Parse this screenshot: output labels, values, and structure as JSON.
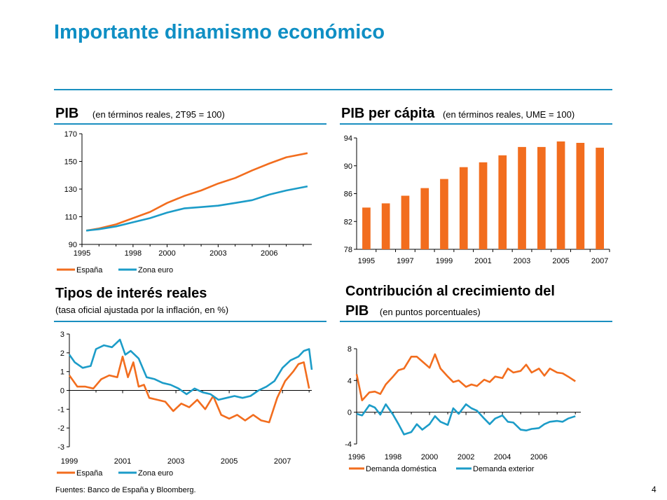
{
  "page": {
    "title": "Importante dinamismo económico",
    "footer": "Fuentes: Banco de España y Bloomberg.",
    "page_number": "4"
  },
  "panels": {
    "pib": {
      "title": "PIB",
      "subtitle": "(en términos reales, 2T95 = 100)"
    },
    "pib_pc": {
      "title": "PIB per cápita",
      "subtitle": "(en términos reales, UME = 100)"
    },
    "tipos": {
      "title": "Tipos de interés reales",
      "subtitle": "(tasa oficial ajustada por la inflación, en %)"
    },
    "contrib": {
      "title_line1": "Contribución al crecimiento del",
      "title_line2": "PIB",
      "subtitle": "(en puntos porcentuales)"
    }
  },
  "colors": {
    "accent": "#0f8fc4",
    "orange": "#f26d1e",
    "blue": "#1c9cc8"
  },
  "chart_data": [
    {
      "id": "pib",
      "type": "line",
      "title": "PIB",
      "subtitle": "(en términos reales, 2T95 = 100)",
      "ylim": [
        90,
        170
      ],
      "yticks": [
        90,
        110,
        130,
        150,
        170
      ],
      "xlim": [
        1995,
        2008.5
      ],
      "xticks": [
        1995,
        1998,
        2000,
        2003,
        2006
      ],
      "legend": "bottom",
      "series": [
        {
          "name": "España",
          "color": "#f26d1e",
          "x": [
            1995.25,
            1996,
            1997,
            1998,
            1999,
            2000,
            2001,
            2002,
            2003,
            2004,
            2005,
            2006,
            2007,
            2008.25
          ],
          "values": [
            100,
            101.5,
            104.5,
            109,
            113.5,
            120,
            125,
            129,
            134,
            138,
            143.5,
            148.5,
            153,
            156
          ]
        },
        {
          "name": "Zona euro",
          "color": "#1c9cc8",
          "x": [
            1995.25,
            1996,
            1997,
            1998,
            1999,
            2000,
            2001,
            2002,
            2003,
            2004,
            2005,
            2006,
            2007,
            2008.25
          ],
          "values": [
            100,
            101,
            103,
            106,
            109,
            113,
            116,
            117,
            118,
            120,
            122,
            126,
            129,
            132
          ]
        }
      ]
    },
    {
      "id": "pib_pc",
      "type": "bar",
      "title": "PIB per cápita",
      "subtitle": "(en términos reales, UME = 100)",
      "ylim": [
        78,
        94
      ],
      "yticks": [
        78,
        82,
        86,
        90,
        94
      ],
      "categories": [
        "1995",
        "1996",
        "1997",
        "1998",
        "1999",
        "2000",
        "2001",
        "2002",
        "2003",
        "2004",
        "2005",
        "2006",
        "2007"
      ],
      "xtick_labels": [
        "1995",
        "1997",
        "1999",
        "2001",
        "2003",
        "2005",
        "2007"
      ],
      "values": [
        84.0,
        84.6,
        85.7,
        86.8,
        88.1,
        89.8,
        90.5,
        91.5,
        92.7,
        92.7,
        93.5,
        93.3,
        92.6
      ],
      "color": "#f26d1e"
    },
    {
      "id": "tipos",
      "type": "line",
      "title": "Tipos de interés reales",
      "subtitle": "(tasa oficial ajustada por la inflación, en %)",
      "ylim": [
        -3,
        3
      ],
      "yticks": [
        -3,
        -2,
        -1,
        0,
        1,
        2,
        3
      ],
      "xlim": [
        1999,
        2008.1
      ],
      "xticks": [
        1999,
        2001,
        2003,
        2005,
        2007
      ],
      "legend": "bottom",
      "series": [
        {
          "name": "España",
          "color": "#f26d1e",
          "x": [
            1999.0,
            1999.3,
            1999.6,
            1999.9,
            2000.2,
            2000.5,
            2000.8,
            2001.0,
            2001.2,
            2001.4,
            2001.6,
            2001.8,
            2002.0,
            2002.3,
            2002.6,
            2002.9,
            2003.2,
            2003.5,
            2003.8,
            2004.1,
            2004.4,
            2004.7,
            2005.0,
            2005.3,
            2005.6,
            2005.9,
            2006.2,
            2006.5,
            2006.8,
            2007.1,
            2007.4,
            2007.6,
            2007.8,
            2008.0
          ],
          "values": [
            0.8,
            0.2,
            0.2,
            0.1,
            0.6,
            0.8,
            0.7,
            1.8,
            0.7,
            1.5,
            0.2,
            0.3,
            -0.4,
            -0.5,
            -0.6,
            -1.1,
            -0.7,
            -0.9,
            -0.5,
            -1.0,
            -0.3,
            -1.3,
            -1.5,
            -1.3,
            -1.6,
            -1.3,
            -1.6,
            -1.7,
            -0.4,
            0.5,
            1.0,
            1.4,
            1.5,
            0.1
          ]
        },
        {
          "name": "Zona euro",
          "color": "#1c9cc8",
          "x": [
            1999.0,
            1999.2,
            1999.5,
            1999.8,
            2000.0,
            2000.3,
            2000.6,
            2000.9,
            2001.1,
            2001.3,
            2001.6,
            2001.9,
            2002.2,
            2002.5,
            2002.8,
            2003.1,
            2003.4,
            2003.7,
            2004.0,
            2004.3,
            2004.6,
            2004.9,
            2005.2,
            2005.5,
            2005.8,
            2006.1,
            2006.4,
            2006.7,
            2007.0,
            2007.3,
            2007.6,
            2007.8,
            2008.0,
            2008.1
          ],
          "values": [
            1.9,
            1.5,
            1.2,
            1.3,
            2.2,
            2.4,
            2.3,
            2.7,
            1.9,
            2.1,
            1.7,
            0.7,
            0.6,
            0.4,
            0.3,
            0.1,
            -0.2,
            0.1,
            -0.1,
            -0.2,
            -0.5,
            -0.4,
            -0.3,
            -0.4,
            -0.3,
            0.0,
            0.2,
            0.5,
            1.2,
            1.6,
            1.8,
            2.1,
            2.2,
            1.1
          ]
        }
      ]
    },
    {
      "id": "contrib",
      "type": "line",
      "title": "Contribución al crecimiento del PIB",
      "subtitle": "(en puntos porcentuales)",
      "ylim": [
        -4,
        8
      ],
      "yticks": [
        -4,
        0,
        4,
        8
      ],
      "xlim": [
        1996,
        2008.3
      ],
      "xticks": [
        1996,
        1998,
        2000,
        2002,
        2004,
        2006
      ],
      "legend": "bottom",
      "series": [
        {
          "name": "Demanda doméstica",
          "color": "#f26d1e",
          "x": [
            1996.0,
            1996.3,
            1996.7,
            1997.0,
            1997.3,
            1997.6,
            1998.0,
            1998.3,
            1998.6,
            1999.0,
            1999.3,
            1999.6,
            2000.0,
            2000.3,
            2000.6,
            2001.0,
            2001.3,
            2001.6,
            2002.0,
            2002.3,
            2002.6,
            2003.0,
            2003.3,
            2003.6,
            2004.0,
            2004.3,
            2004.6,
            2005.0,
            2005.3,
            2005.6,
            2006.0,
            2006.3,
            2006.6,
            2007.0,
            2007.3,
            2007.6,
            2008.0
          ],
          "values": [
            4.8,
            1.5,
            2.5,
            2.6,
            2.3,
            3.5,
            4.5,
            5.3,
            5.5,
            7.0,
            7.0,
            6.4,
            5.6,
            7.3,
            5.5,
            4.5,
            3.8,
            4.0,
            3.2,
            3.5,
            3.3,
            4.1,
            3.8,
            4.5,
            4.3,
            5.5,
            5.0,
            5.2,
            6.0,
            5.0,
            5.5,
            4.6,
            5.5,
            5.0,
            4.9,
            4.5,
            3.9
          ]
        },
        {
          "name": "Demanda exterior",
          "color": "#1c9cc8",
          "x": [
            1996.0,
            1996.3,
            1996.7,
            1997.0,
            1997.3,
            1997.6,
            1998.0,
            1998.3,
            1998.6,
            1999.0,
            1999.3,
            1999.6,
            2000.0,
            2000.3,
            2000.6,
            2001.0,
            2001.3,
            2001.6,
            2002.0,
            2002.3,
            2002.6,
            2003.0,
            2003.3,
            2003.6,
            2004.0,
            2004.3,
            2004.6,
            2005.0,
            2005.3,
            2005.6,
            2006.0,
            2006.3,
            2006.6,
            2007.0,
            2007.3,
            2007.6,
            2008.0
          ],
          "values": [
            -0.2,
            -0.4,
            0.9,
            0.6,
            -0.3,
            1.0,
            -0.3,
            -1.5,
            -2.8,
            -2.5,
            -1.5,
            -2.2,
            -1.5,
            -0.5,
            -1.2,
            -1.6,
            0.5,
            -0.2,
            1.0,
            0.5,
            0.2,
            -0.8,
            -1.5,
            -0.8,
            -0.4,
            -1.2,
            -1.3,
            -2.2,
            -2.3,
            -2.1,
            -2.0,
            -1.5,
            -1.2,
            -1.1,
            -1.2,
            -0.8,
            -0.5
          ]
        }
      ]
    }
  ]
}
